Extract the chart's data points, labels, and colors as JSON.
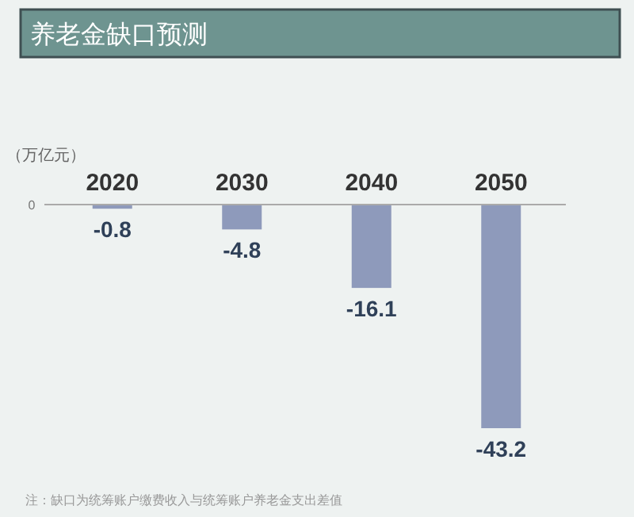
{
  "chart_data": {
    "type": "bar",
    "title": "养老金缺口预测",
    "ylabel": "（万亿元）",
    "categories": [
      "2020",
      "2030",
      "2040",
      "2050"
    ],
    "values": [
      -0.8,
      -4.8,
      -16.1,
      -43.2
    ],
    "color": "#8e9abb",
    "data_labels": true,
    "annotations": [
      "0",
      "注：缺口为统筹账户缴费收入与统筹账户养老金支出差值"
    ]
  }
}
